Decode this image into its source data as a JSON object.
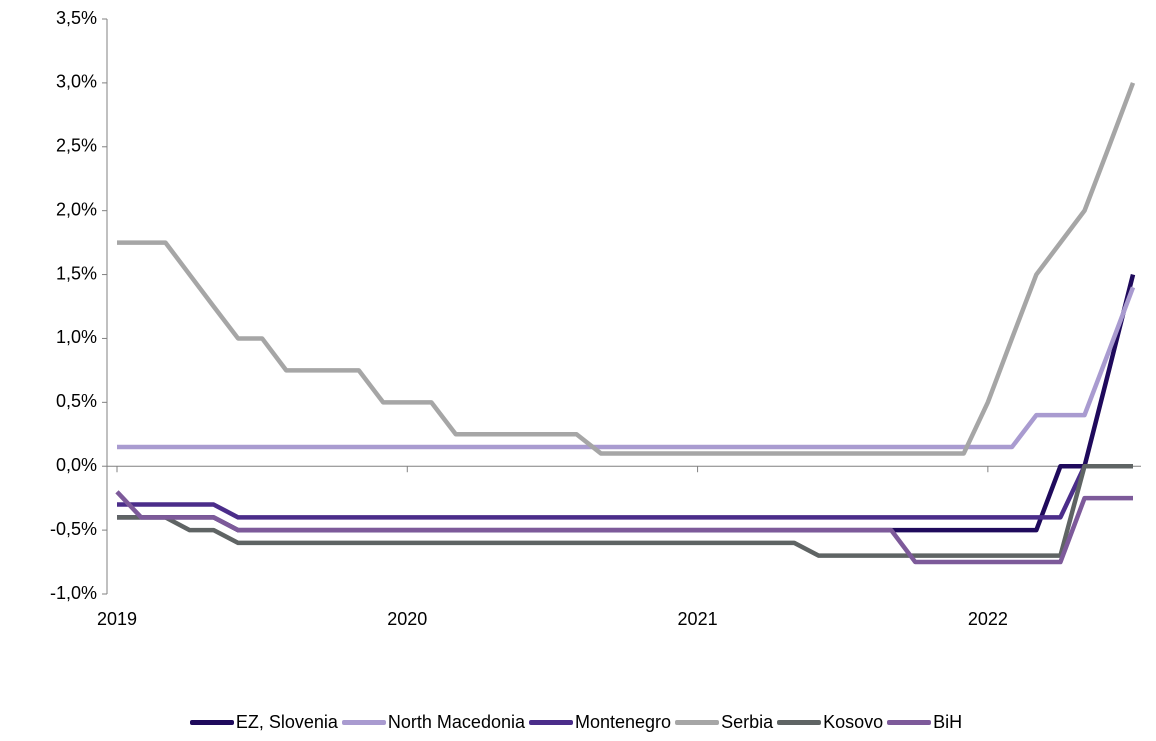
{
  "chart_data": {
    "type": "line",
    "x": [
      2019,
      2019.083,
      2019.167,
      2019.25,
      2019.333,
      2019.417,
      2019.5,
      2019.583,
      2019.667,
      2019.75,
      2019.833,
      2019.917,
      2020,
      2020.083,
      2020.167,
      2020.25,
      2020.333,
      2020.417,
      2020.5,
      2020.583,
      2020.667,
      2020.75,
      2020.833,
      2020.917,
      2021,
      2021.083,
      2021.167,
      2021.25,
      2021.333,
      2021.417,
      2021.5,
      2021.583,
      2021.667,
      2021.75,
      2021.833,
      2021.917,
      2022,
      2022.083,
      2022.167,
      2022.25,
      2022.333,
      2022.417,
      2022.5
    ],
    "series": [
      {
        "name": "EZ, Slovenia",
        "color": "#1f0a5c",
        "values": [
          -0.4,
          -0.4,
          -0.4,
          -0.4,
          -0.4,
          -0.5,
          -0.5,
          -0.5,
          -0.5,
          -0.5,
          -0.5,
          -0.5,
          -0.5,
          -0.5,
          -0.5,
          -0.5,
          -0.5,
          -0.5,
          -0.5,
          -0.5,
          -0.5,
          -0.5,
          -0.5,
          -0.5,
          -0.5,
          -0.5,
          -0.5,
          -0.5,
          -0.5,
          -0.5,
          -0.5,
          -0.5,
          -0.5,
          -0.5,
          -0.5,
          -0.5,
          -0.5,
          -0.5,
          -0.5,
          0,
          0,
          0.75,
          1.5
        ]
      },
      {
        "name": "North Macedonia",
        "color": "#a99bd0",
        "values": [
          0.15,
          0.15,
          0.15,
          0.15,
          0.15,
          0.15,
          0.15,
          0.15,
          0.15,
          0.15,
          0.15,
          0.15,
          0.15,
          0.15,
          0.15,
          0.15,
          0.15,
          0.15,
          0.15,
          0.15,
          0.15,
          0.15,
          0.15,
          0.15,
          0.15,
          0.15,
          0.15,
          0.15,
          0.15,
          0.15,
          0.15,
          0.15,
          0.15,
          0.15,
          0.15,
          0.15,
          0.15,
          0.15,
          0.4,
          0.4,
          0.4,
          0.9,
          1.4
        ]
      },
      {
        "name": "Montenegro",
        "color": "#4b2d8a",
        "values": [
          -0.3,
          -0.3,
          -0.3,
          -0.3,
          -0.3,
          -0.4,
          -0.4,
          -0.4,
          -0.4,
          -0.4,
          -0.4,
          -0.4,
          -0.4,
          -0.4,
          -0.4,
          -0.4,
          -0.4,
          -0.4,
          -0.4,
          -0.4,
          -0.4,
          -0.4,
          -0.4,
          -0.4,
          -0.4,
          -0.4,
          -0.4,
          -0.4,
          -0.4,
          -0.4,
          -0.4,
          -0.4,
          -0.4,
          -0.4,
          -0.4,
          -0.4,
          -0.4,
          -0.4,
          -0.4,
          -0.4,
          0,
          0,
          0
        ]
      },
      {
        "name": "Serbia",
        "color": "#a6a6a6",
        "values": [
          1.75,
          1.75,
          1.75,
          1.5,
          1.25,
          1.0,
          1.0,
          0.75,
          0.75,
          0.75,
          0.75,
          0.5,
          0.5,
          0.5,
          0.25,
          0.25,
          0.25,
          0.25,
          0.25,
          0.25,
          0.1,
          0.1,
          0.1,
          0.1,
          0.1,
          0.1,
          0.1,
          0.1,
          0.1,
          0.1,
          0.1,
          0.1,
          0.1,
          0.1,
          0.1,
          0.1,
          0.5,
          1.0,
          1.5,
          1.75,
          2.0,
          2.5,
          3.0
        ]
      },
      {
        "name": "Kosovo",
        "color": "#5f6464",
        "values": [
          -0.4,
          -0.4,
          -0.4,
          -0.5,
          -0.5,
          -0.6,
          -0.6,
          -0.6,
          -0.6,
          -0.6,
          -0.6,
          -0.6,
          -0.6,
          -0.6,
          -0.6,
          -0.6,
          -0.6,
          -0.6,
          -0.6,
          -0.6,
          -0.6,
          -0.6,
          -0.6,
          -0.6,
          -0.6,
          -0.6,
          -0.6,
          -0.6,
          -0.6,
          -0.7,
          -0.7,
          -0.7,
          -0.7,
          -0.7,
          -0.7,
          -0.7,
          -0.7,
          -0.7,
          -0.7,
          -0.7,
          0,
          0,
          0
        ]
      },
      {
        "name": "BiH",
        "color": "#7d5a9a",
        "values": [
          -0.2,
          -0.4,
          -0.4,
          -0.4,
          -0.4,
          -0.5,
          -0.5,
          -0.5,
          -0.5,
          -0.5,
          -0.5,
          -0.5,
          -0.5,
          -0.5,
          -0.5,
          -0.5,
          -0.5,
          -0.5,
          -0.5,
          -0.5,
          -0.5,
          -0.5,
          -0.5,
          -0.5,
          -0.5,
          -0.5,
          -0.5,
          -0.5,
          -0.5,
          -0.5,
          -0.5,
          -0.5,
          -0.5,
          -0.75,
          -0.75,
          -0.75,
          -0.75,
          -0.75,
          -0.75,
          -0.75,
          -0.25,
          -0.25,
          -0.25
        ]
      }
    ],
    "xlim": [
      2019,
      2022.5
    ],
    "xticks": [
      2019,
      2020,
      2021,
      2022
    ],
    "ylim": [
      -1,
      3.5
    ],
    "yticks": [
      {
        "value": -1,
        "label": "-1,0%"
      },
      {
        "value": -0.5,
        "label": "-0,5%"
      },
      {
        "value": 0,
        "label": "0,0%"
      },
      {
        "value": 0.5,
        "label": "0,5%"
      },
      {
        "value": 1,
        "label": "1,0%"
      },
      {
        "value": 1.5,
        "label": "1,5%"
      },
      {
        "value": 2,
        "label": "2,0%"
      },
      {
        "value": 2.5,
        "label": "2,5%"
      },
      {
        "value": 3,
        "label": "3,0%"
      },
      {
        "value": 3.5,
        "label": "3,5%"
      }
    ],
    "legend": "bottom"
  }
}
